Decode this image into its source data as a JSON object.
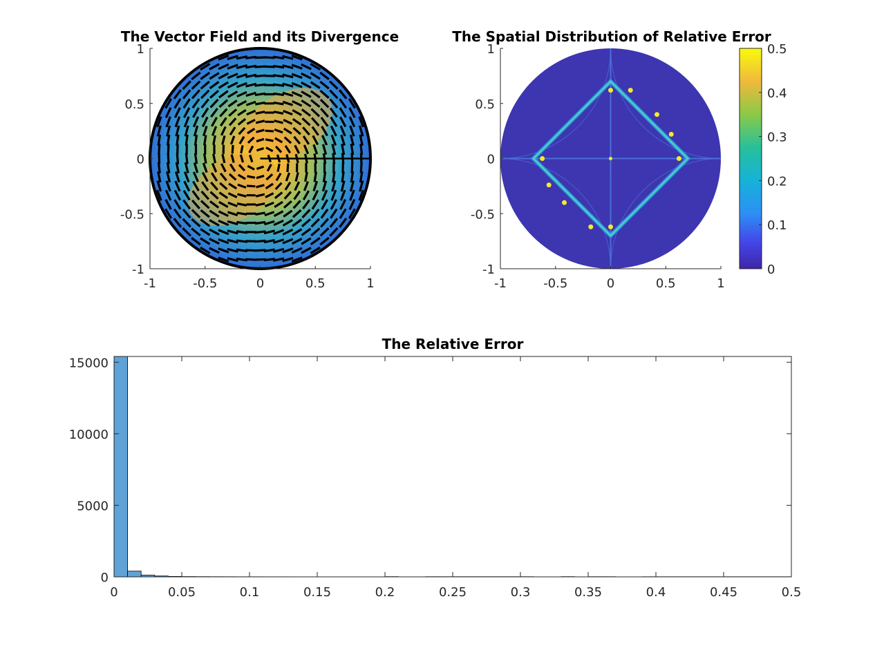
{
  "figure": {
    "background": "#ffffff"
  },
  "chart_data": [
    {
      "type": "heatmap",
      "subtype": "vector-field-overlay",
      "title": "The Vector Field and its Divergence",
      "xlabel": "",
      "ylabel": "",
      "xlim": [
        -1,
        1
      ],
      "ylim": [
        -1,
        1
      ],
      "xticks": [
        -1,
        -0.5,
        0,
        0.5,
        1
      ],
      "yticks": [
        -1,
        -0.5,
        0,
        0.5,
        1
      ],
      "xtick_labels": [
        "-1",
        "-0.5",
        "0",
        "0.5",
        "1"
      ],
      "ytick_labels": [
        "-1",
        "-0.5",
        "0",
        "0.5",
        "1"
      ],
      "domain": "unit disk",
      "colormap": "parula",
      "field": "counter-clockwise swirl around origin",
      "peak_center": [
        0,
        0
      ],
      "peak_color": "#e8d830",
      "edge_color": "#3a7fd6",
      "arrow_color": "#000000",
      "grid": false
    },
    {
      "type": "heatmap",
      "title": "The Spatial Distribution of Relative Error",
      "xlabel": "",
      "ylabel": "",
      "xlim": [
        -1,
        1
      ],
      "ylim": [
        -1,
        1
      ],
      "xticks": [
        -1,
        -0.5,
        0,
        0.5,
        1
      ],
      "yticks": [
        -1,
        -0.5,
        0,
        0.5,
        1
      ],
      "xtick_labels": [
        "-1",
        "-0.5",
        "0",
        "0.5",
        "1"
      ],
      "ytick_labels": [
        "-1",
        "-0.5",
        "0",
        "0.5",
        "1"
      ],
      "domain": "unit disk",
      "colormap": "parula",
      "background_value": 0.02,
      "high_error_curve": "diamond |x|+|y| ≈ 0.7",
      "colorbar": {
        "range": [
          0,
          0.5
        ],
        "ticks": [
          0,
          0.1,
          0.2,
          0.3,
          0.4,
          0.5
        ],
        "tick_labels": [
          "0",
          "0.1",
          "0.2",
          "0.3",
          "0.4",
          "0.5"
        ],
        "placement": "right"
      },
      "grid": false
    },
    {
      "type": "bar",
      "subtype": "histogram",
      "title": "The Relative Error",
      "xlabel": "",
      "ylabel": "",
      "xlim": [
        0,
        0.5
      ],
      "ylim": [
        0,
        15400
      ],
      "xticks": [
        0,
        0.05,
        0.1,
        0.15,
        0.2,
        0.25,
        0.3,
        0.35,
        0.4,
        0.45,
        0.5
      ],
      "xtick_labels": [
        "0",
        "0.05",
        "0.1",
        "0.15",
        "0.2",
        "0.25",
        "0.3",
        "0.35",
        "0.4",
        "0.45",
        "0.5"
      ],
      "yticks": [
        0,
        5000,
        10000,
        15000
      ],
      "ytick_labels": [
        "0",
        "5000",
        "10000",
        "15000"
      ],
      "bin_width": 0.01,
      "bin_starts": [
        0,
        0.01,
        0.02,
        0.03,
        0.04,
        0.05,
        0.06,
        0.07,
        0.08,
        0.09,
        0.1,
        0.11,
        0.12,
        0.13,
        0.14,
        0.15,
        0.16,
        0.17,
        0.18,
        0.19,
        0.2,
        0.21,
        0.22,
        0.23,
        0.24,
        0.25,
        0.26,
        0.27,
        0.28,
        0.29,
        0.3,
        0.31,
        0.32,
        0.33,
        0.34,
        0.35,
        0.36,
        0.37,
        0.38,
        0.39,
        0.4,
        0.41,
        0.42,
        0.43,
        0.44,
        0.45,
        0.46,
        0.47,
        0.48,
        0.49
      ],
      "values": [
        15400,
        400,
        120,
        60,
        30,
        20,
        15,
        12,
        10,
        8,
        8,
        6,
        6,
        5,
        5,
        5,
        4,
        4,
        4,
        4,
        15,
        4,
        4,
        12,
        12,
        12,
        12,
        12,
        12,
        12,
        12,
        4,
        4,
        15,
        4,
        12,
        12,
        4,
        4,
        10,
        10,
        10,
        10,
        10,
        10,
        10,
        10,
        10,
        10,
        10
      ],
      "bar_color": "#5fa2d8",
      "grid": false
    }
  ]
}
